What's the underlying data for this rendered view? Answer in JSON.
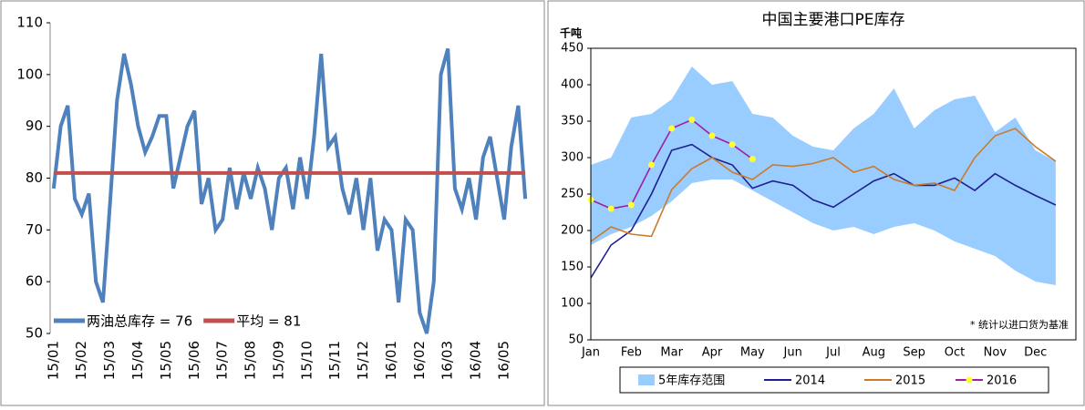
{
  "chart_data": [
    {
      "type": "line",
      "categories": [
        "15/01",
        null,
        null,
        null,
        "15/02",
        null,
        null,
        null,
        "15/03",
        null,
        null,
        null,
        "15/04",
        null,
        null,
        null,
        "15/05",
        null,
        null,
        null,
        "15/06",
        null,
        null,
        null,
        "15/07",
        null,
        null,
        null,
        "15/08",
        null,
        null,
        null,
        "15/09",
        null,
        null,
        null,
        "15/10",
        null,
        null,
        null,
        "15/11",
        null,
        null,
        null,
        "15/12",
        null,
        null,
        null,
        "16/01",
        null,
        null,
        null,
        "16/02",
        null,
        null,
        null,
        "16/03",
        null,
        null,
        null,
        "16/04",
        null,
        null,
        null,
        "16/05",
        null,
        null,
        null
      ],
      "series": [
        {
          "name": "两油总库存 = 76",
          "color": "#4f81bd",
          "values": [
            78,
            90,
            94,
            76,
            73,
            77,
            60,
            56,
            75,
            95,
            104,
            98,
            90,
            85,
            88,
            92,
            92,
            78,
            84,
            90,
            93,
            75,
            80,
            70,
            72,
            82,
            74,
            81,
            76,
            82,
            78,
            70,
            80,
            82,
            74,
            84,
            76,
            88,
            104,
            86,
            88,
            78,
            73,
            80,
            70,
            80,
            66,
            72,
            70,
            56,
            72,
            70,
            54,
            50,
            60,
            100,
            105,
            78,
            74,
            80,
            72,
            84,
            88,
            80,
            72,
            86,
            94,
            76
          ]
        },
        {
          "name": "平均 = 81",
          "color": "#c0504d",
          "values": [
            81,
            81,
            81,
            81,
            81,
            81,
            81,
            81,
            81,
            81,
            81,
            81,
            81,
            81,
            81,
            81,
            81,
            81,
            81,
            81,
            81,
            81,
            81,
            81,
            81,
            81,
            81,
            81,
            81,
            81,
            81,
            81,
            81,
            81,
            81,
            81,
            81,
            81,
            81,
            81,
            81,
            81,
            81,
            81,
            81,
            81,
            81,
            81,
            81,
            81,
            81,
            81,
            81,
            81,
            81,
            81,
            81,
            81,
            81,
            81,
            81,
            81,
            81,
            81,
            81,
            81,
            81,
            81
          ]
        }
      ],
      "ylim": [
        50,
        110
      ],
      "yticks": [
        50,
        60,
        70,
        80,
        90,
        100,
        110
      ],
      "legend": "lower left"
    },
    {
      "type": "line",
      "title": "中国主要港口PE库存",
      "y_label": "千吨",
      "annotation": "* 统计以进口货为基准",
      "categories": [
        "Jan",
        null,
        "Feb",
        null,
        "Mar",
        null,
        "Apr",
        null,
        "May",
        null,
        "Jun",
        null,
        "Jul",
        null,
        "Aug",
        null,
        "Sep",
        null,
        "Oct",
        null,
        "Nov",
        null,
        "Dec",
        null
      ],
      "series": [
        {
          "name": "5年库存范围",
          "color": "#99ccff",
          "kind": "range",
          "high": [
            290,
            300,
            355,
            360,
            380,
            425,
            400,
            405,
            360,
            355,
            330,
            315,
            310,
            340,
            360,
            395,
            340,
            365,
            380,
            385,
            335,
            355,
            310,
            295
          ],
          "values": [
            180,
            195,
            205,
            220,
            240,
            265,
            270,
            270,
            255,
            240,
            225,
            210,
            200,
            205,
            195,
            205,
            210,
            200,
            185,
            175,
            165,
            145,
            130,
            125
          ]
        },
        {
          "name": "2014",
          "color": "#1f1f8f",
          "values": [
            135,
            180,
            200,
            250,
            310,
            318,
            300,
            290,
            258,
            268,
            262,
            242,
            232,
            250,
            268,
            278,
            262,
            262,
            272,
            255,
            278,
            262,
            248,
            235
          ]
        },
        {
          "name": "2015",
          "color": "#cc7a29",
          "values": [
            185,
            205,
            195,
            192,
            256,
            285,
            300,
            280,
            270,
            290,
            288,
            292,
            300,
            280,
            288,
            270,
            262,
            265,
            255,
            300,
            330,
            340,
            315,
            295
          ]
        },
        {
          "name": "2016",
          "color": "#a020a0",
          "marker_color": "#ffff33",
          "values": [
            242,
            230,
            235,
            290,
            340,
            352,
            330,
            318,
            298,
            null,
            null,
            null,
            null,
            null,
            null,
            null,
            null,
            null,
            null,
            null,
            null,
            null,
            null,
            null
          ]
        }
      ],
      "ylim": [
        50,
        450
      ],
      "yticks": [
        50,
        100,
        150,
        200,
        250,
        300,
        350,
        400,
        450
      ],
      "legend": "bottom"
    }
  ]
}
